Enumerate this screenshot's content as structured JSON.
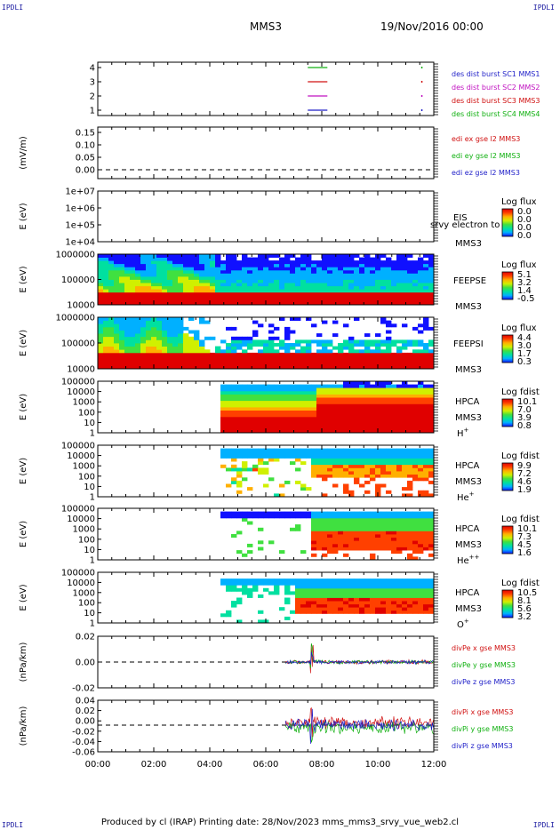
{
  "corner_tag": "IPDLI",
  "header": {
    "spacecraft": "MMS3",
    "datetime": "19/Nov/2016 00:00"
  },
  "footer": "Produced by cl (IRAP)   Printing date: 28/Nov/2023   mms_mms3_srvy_vue_web2.cl",
  "x_axis": {
    "ticks": [
      "00:00",
      "02:00",
      "04:00",
      "06:00",
      "08:00",
      "10:00",
      "12:00"
    ],
    "range_hours": [
      0,
      12
    ]
  },
  "colors": {
    "blue": "#1e1ec8",
    "red": "#d01010",
    "magenta": "#c010c0",
    "green": "#10b010",
    "spectrum": [
      "#1010ff",
      "#00b0ff",
      "#00e0a0",
      "#40e040",
      "#d0f000",
      "#ffb000",
      "#ff4000",
      "#e00000"
    ]
  },
  "chart_data": [
    {
      "type": "line",
      "id": "burst",
      "y_ticks": [
        "4",
        "3",
        "2",
        "1"
      ],
      "ylim": [
        0.5,
        4.5
      ],
      "legend": [
        {
          "text": "des dist burst SC1 MMS1",
          "color": "blue"
        },
        {
          "text": "des dist burst SC2 MMS2",
          "color": "magenta"
        },
        {
          "text": "des dist burst SC3 MMS3",
          "color": "red"
        },
        {
          "text": "des dist burst SC4 MMS4",
          "color": "green"
        }
      ],
      "series": [
        {
          "level": 4,
          "color": "green",
          "x": [
            7.5,
            8.2
          ]
        },
        {
          "level": 3,
          "color": "red",
          "x": [
            7.5,
            8.2
          ]
        },
        {
          "level": 2,
          "color": "magenta",
          "x": [
            7.5,
            8.2
          ]
        },
        {
          "level": 1,
          "color": "blue",
          "x": [
            7.5,
            8.2
          ]
        }
      ]
    },
    {
      "type": "line",
      "id": "edi",
      "ylabel": "(mV/m)",
      "y_ticks": [
        "0.15",
        "0.10",
        "0.05",
        "0.00"
      ],
      "ylim": [
        -0.02,
        0.17
      ],
      "legend": [
        {
          "text": "edi ex gse l2 MMS3",
          "color": "red"
        },
        {
          "text": "edi ey gse l2 MMS3",
          "color": "green"
        },
        {
          "text": "edi ez gse l2 MMS3",
          "color": "blue"
        }
      ]
    },
    {
      "type": "heatmap",
      "id": "eis",
      "ylabel": "E (eV)",
      "y_ticks": [
        "1e+07",
        "1e+06",
        "1e+05",
        "1e+04"
      ],
      "instrument": [
        "EIS",
        "MMS3"
      ],
      "overlay_label": "srvy electron to",
      "cbar_title": "Log flux",
      "cbar_ticks": [
        "0.0",
        "0.0",
        "0.0",
        "0.0"
      ]
    },
    {
      "type": "heatmap",
      "id": "feepse",
      "ylabel": "E (eV)",
      "y_ticks": [
        "1000000",
        "100000",
        "10000"
      ],
      "instrument": [
        "FEEPSE",
        "MMS3"
      ],
      "cbar_title": "Log flux",
      "cbar_ticks": [
        "5.1",
        "3.2",
        "1.4",
        "-0.5"
      ]
    },
    {
      "type": "heatmap",
      "id": "feepsi",
      "ylabel": "E (eV)",
      "y_ticks": [
        "1000000",
        "100000",
        "10000"
      ],
      "instrument": [
        "FEEPSI",
        "MMS3"
      ],
      "cbar_title": "Log flux",
      "cbar_ticks": [
        "4.4",
        "3.0",
        "1.7",
        "0.3"
      ]
    },
    {
      "type": "heatmap",
      "id": "hpca_h",
      "ylabel": "E (eV)",
      "y_ticks": [
        "100000",
        "10000",
        "1000",
        "100",
        "10",
        "1"
      ],
      "instrument": [
        "HPCA",
        "MMS3"
      ],
      "species": "H",
      "species_sup": "+",
      "cbar_title": "Log fdist",
      "cbar_ticks": [
        "10.1",
        "7.0",
        "3.9",
        "0.8"
      ]
    },
    {
      "type": "heatmap",
      "id": "hpca_he1",
      "ylabel": "E (eV)",
      "y_ticks": [
        "100000",
        "10000",
        "1000",
        "100",
        "10",
        "1"
      ],
      "instrument": [
        "HPCA",
        "MMS3"
      ],
      "species": "He",
      "species_sup": "+",
      "cbar_title": "Log fdist",
      "cbar_ticks": [
        "9.9",
        "7.2",
        "4.6",
        "1.9"
      ]
    },
    {
      "type": "heatmap",
      "id": "hpca_he2",
      "ylabel": "E (eV)",
      "y_ticks": [
        "100000",
        "10000",
        "1000",
        "100",
        "10",
        "1"
      ],
      "instrument": [
        "HPCA",
        "MMS3"
      ],
      "species": "He",
      "species_sup": "++",
      "cbar_title": "Log fdist",
      "cbar_ticks": [
        "10.1",
        "7.3",
        "4.5",
        "1.6"
      ]
    },
    {
      "type": "heatmap",
      "id": "hpca_o",
      "ylabel": "E (eV)",
      "y_ticks": [
        "100000",
        "10000",
        "1000",
        "100",
        "10",
        "1"
      ],
      "instrument": [
        "HPCA",
        "MMS3"
      ],
      "species": "O",
      "species_sup": "+",
      "cbar_title": "Log fdist",
      "cbar_ticks": [
        "10.5",
        "8.1",
        "5.6",
        "3.2"
      ]
    },
    {
      "type": "line",
      "id": "divpe",
      "ylabel": "(nPa/km)",
      "y_ticks": [
        "0.02",
        "0.00",
        "-0.02"
      ],
      "ylim": [
        -0.03,
        0.03
      ],
      "legend": [
        {
          "text": "divPe x gse MMS3",
          "color": "red"
        },
        {
          "text": "divPe y gse MMS3",
          "color": "green"
        },
        {
          "text": "divPe z gse MMS3",
          "color": "blue"
        }
      ]
    },
    {
      "type": "line",
      "id": "divpi",
      "ylabel": "(nPa/km)",
      "y_ticks": [
        "0.04",
        "0.02",
        "0.00",
        "-0.02",
        "-0.04",
        "-0.06"
      ],
      "ylim": [
        -0.07,
        0.05
      ],
      "legend": [
        {
          "text": "divPi x gse MMS3",
          "color": "red"
        },
        {
          "text": "divPi y gse MMS3",
          "color": "green"
        },
        {
          "text": "divPi z gse MMS3",
          "color": "blue"
        }
      ]
    }
  ]
}
